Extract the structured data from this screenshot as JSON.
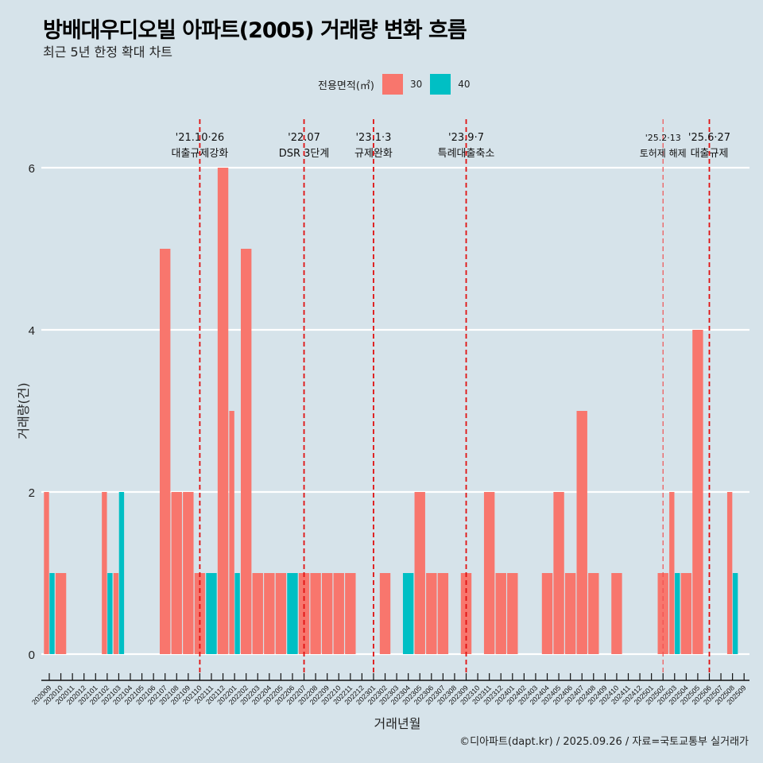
{
  "header": {
    "title": "방배대우디오빌 아파트(2005) 거래량 변화 흐름",
    "subtitle": "최근 5년 한정 확대 차트"
  },
  "legend": {
    "title": "전용면적(㎡)",
    "items": [
      {
        "label": "30",
        "color": "#F8766D"
      },
      {
        "label": "40",
        "color": "#00BFC4"
      }
    ]
  },
  "footer": "©디아파트(dapt.kr) / 2025.09.26 / 자료=국토교통부 실거래가",
  "chart_data": {
    "type": "bar",
    "title": "방배대우디오빌 아파트(2005) 거래량 변화 흐름",
    "subtitle": "최근 5년 한정 확대 차트",
    "xlabel": "거래년월",
    "ylabel": "거래량(건)",
    "ylim": [
      0,
      6.4
    ],
    "yticks": [
      0,
      2,
      4,
      6
    ],
    "grid": "horizontal",
    "legend_position": "top",
    "categories": [
      "202009",
      "202010",
      "202011",
      "202012",
      "202101",
      "202102",
      "202103",
      "202104",
      "202105",
      "202106",
      "202107",
      "202108",
      "202109",
      "202110",
      "202111",
      "202112",
      "202201",
      "202202",
      "202203",
      "202204",
      "202205",
      "202206",
      "202207",
      "202208",
      "202209",
      "202210",
      "202211",
      "202212",
      "202301",
      "202302",
      "202303",
      "202304",
      "202305",
      "202306",
      "202307",
      "202308",
      "202309",
      "202310",
      "202311",
      "202312",
      "202401",
      "202402",
      "202403",
      "202404",
      "202405",
      "202406",
      "202407",
      "202408",
      "202409",
      "202410",
      "202411",
      "202412",
      "202501",
      "202502",
      "202503",
      "202504",
      "202505",
      "202506",
      "202507",
      "202508",
      "202509"
    ],
    "series": [
      {
        "name": "30",
        "color": "#F8766D",
        "values": [
          2,
          1,
          0,
          0,
          0,
          2,
          1,
          0,
          0,
          0,
          5,
          2,
          2,
          1,
          0,
          6,
          3,
          5,
          1,
          1,
          1,
          0,
          1,
          1,
          1,
          1,
          1,
          0,
          0,
          1,
          0,
          0,
          2,
          1,
          1,
          0,
          1,
          0,
          2,
          1,
          1,
          0,
          0,
          1,
          2,
          1,
          3,
          1,
          0,
          1,
          0,
          0,
          0,
          1,
          2,
          1,
          4,
          0,
          0,
          2,
          0
        ]
      },
      {
        "name": "40",
        "color": "#00BFC4",
        "values": [
          1,
          0,
          0,
          0,
          0,
          1,
          2,
          0,
          0,
          0,
          0,
          0,
          0,
          0,
          1,
          0,
          1,
          0,
          0,
          0,
          0,
          1,
          0,
          0,
          0,
          0,
          0,
          0,
          0,
          0,
          0,
          1,
          0,
          0,
          0,
          0,
          0,
          0,
          0,
          0,
          0,
          0,
          0,
          0,
          0,
          0,
          0,
          0,
          0,
          0,
          0,
          0,
          0,
          0,
          1,
          0,
          0,
          0,
          0,
          1,
          0
        ]
      }
    ],
    "annotations": [
      {
        "month": "202110",
        "date": "'21.10·26",
        "label": "대출규제강화",
        "style": "bold"
      },
      {
        "month": "202207",
        "date": "'22.07",
        "label": "DSR 3단계",
        "style": "bold"
      },
      {
        "month": "202301",
        "date": "'23.1·3",
        "label": "규제완화",
        "style": "bold"
      },
      {
        "month": "202309",
        "date": "'23.9·7",
        "label": "특례대출축소",
        "style": "bold"
      },
      {
        "month": "202502",
        "date": "'25.2·13",
        "label": "토허제 해제",
        "style": "light"
      },
      {
        "month": "202506",
        "date": "'25.6·27",
        "label": "대출규제",
        "style": "bold"
      }
    ]
  }
}
